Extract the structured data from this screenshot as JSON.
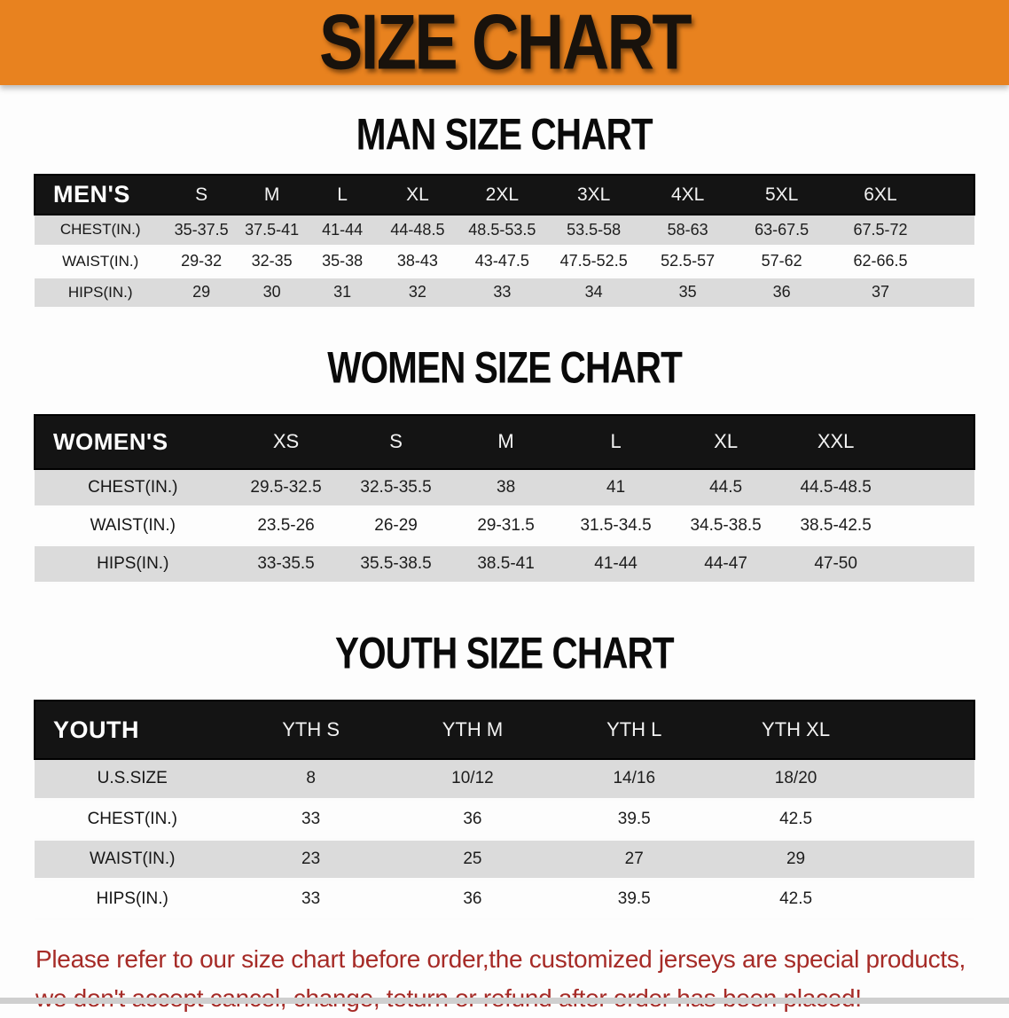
{
  "banner": {
    "title": "SIZE CHART"
  },
  "sections": [
    {
      "id": "men",
      "heading": "MAN SIZE CHART",
      "corner": "MEN'S",
      "columns": [
        "S",
        "M",
        "L",
        "XL",
        "2XL",
        "3XL",
        "4XL",
        "5XL",
        "6XL"
      ],
      "rows": [
        {
          "label": "CHEST(IN.)",
          "values": [
            "35-37.5",
            "37.5-41",
            "41-44",
            "44-48.5",
            "48.5-53.5",
            "53.5-58",
            "58-63",
            "63-67.5",
            "67.5-72"
          ]
        },
        {
          "label": "WAIST(IN.)",
          "values": [
            "29-32",
            "32-35",
            "35-38",
            "38-43",
            "43-47.5",
            "47.5-52.5",
            "52.5-57",
            "57-62",
            "62-66.5"
          ]
        },
        {
          "label": "HIPS(IN.)",
          "values": [
            "29",
            "30",
            "31",
            "32",
            "33",
            "34",
            "35",
            "36",
            "37"
          ]
        }
      ]
    },
    {
      "id": "women",
      "heading": "WOMEN SIZE CHART",
      "corner": "WOMEN'S",
      "columns": [
        "XS",
        "S",
        "M",
        "L",
        "XL",
        "XXL"
      ],
      "rows": [
        {
          "label": "CHEST(IN.)",
          "values": [
            "29.5-32.5",
            "32.5-35.5",
            "38",
            "41",
            "44.5",
            "44.5-48.5"
          ]
        },
        {
          "label": "WAIST(IN.)",
          "values": [
            "23.5-26",
            "26-29",
            "29-31.5",
            "31.5-34.5",
            "34.5-38.5",
            "38.5-42.5"
          ]
        },
        {
          "label": "HIPS(IN.)",
          "values": [
            "33-35.5",
            "35.5-38.5",
            "38.5-41",
            "41-44",
            "44-47",
            "47-50"
          ]
        }
      ]
    },
    {
      "id": "youth",
      "heading": "YOUTH SIZE CHART",
      "corner": "YOUTH",
      "columns": [
        "YTH S",
        "YTH M",
        "YTH L",
        "YTH XL"
      ],
      "rows": [
        {
          "label": "U.S.SIZE",
          "values": [
            "8",
            "10/12",
            "14/16",
            "18/20"
          ]
        },
        {
          "label": "CHEST(IN.)",
          "values": [
            "33",
            "36",
            "39.5",
            "42.5"
          ]
        },
        {
          "label": "WAIST(IN.)",
          "values": [
            "23",
            "25",
            "27",
            "29"
          ]
        },
        {
          "label": "HIPS(IN.)",
          "values": [
            "33",
            "36",
            "39.5",
            "42.5"
          ]
        }
      ]
    }
  ],
  "disclaimer": {
    "line1": "Please refer to our size chart before order,the customized jerseys are special products,",
    "line2": "we don't accept cancel, change, teturn or refund after order has been placed!"
  },
  "colors": {
    "banner_bg": "#E8821F",
    "table_header_bg": "#141414",
    "row_alt_bg": "#DBDBDB",
    "disclaimer_text": "#A62B27"
  }
}
